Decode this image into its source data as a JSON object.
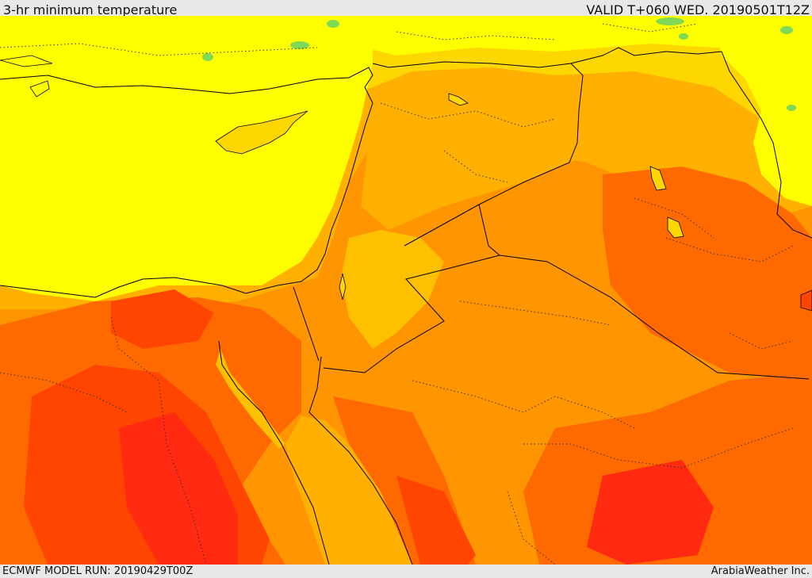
{
  "header": {
    "title": "3-hr minimum temperature",
    "valid_time": "VALID T+060 WED. 20190501T12Z"
  },
  "footer": {
    "model_run": "ECMWF MODEL RUN: 20190429T00Z",
    "credit": "ArabiaWeather Inc."
  },
  "map": {
    "variable": "3-hr minimum temperature",
    "region": "Eastern Mediterranean / Levant / Arabian Peninsula",
    "colors": {
      "green": "#7ed957",
      "yellow": "#ffff00",
      "yellow_orange": "#ffd700",
      "light_orange": "#ffb000",
      "orange": "#ff9500",
      "dark_orange": "#ff6a00",
      "red_orange": "#ff4500",
      "red": "#ff2a10"
    }
  }
}
